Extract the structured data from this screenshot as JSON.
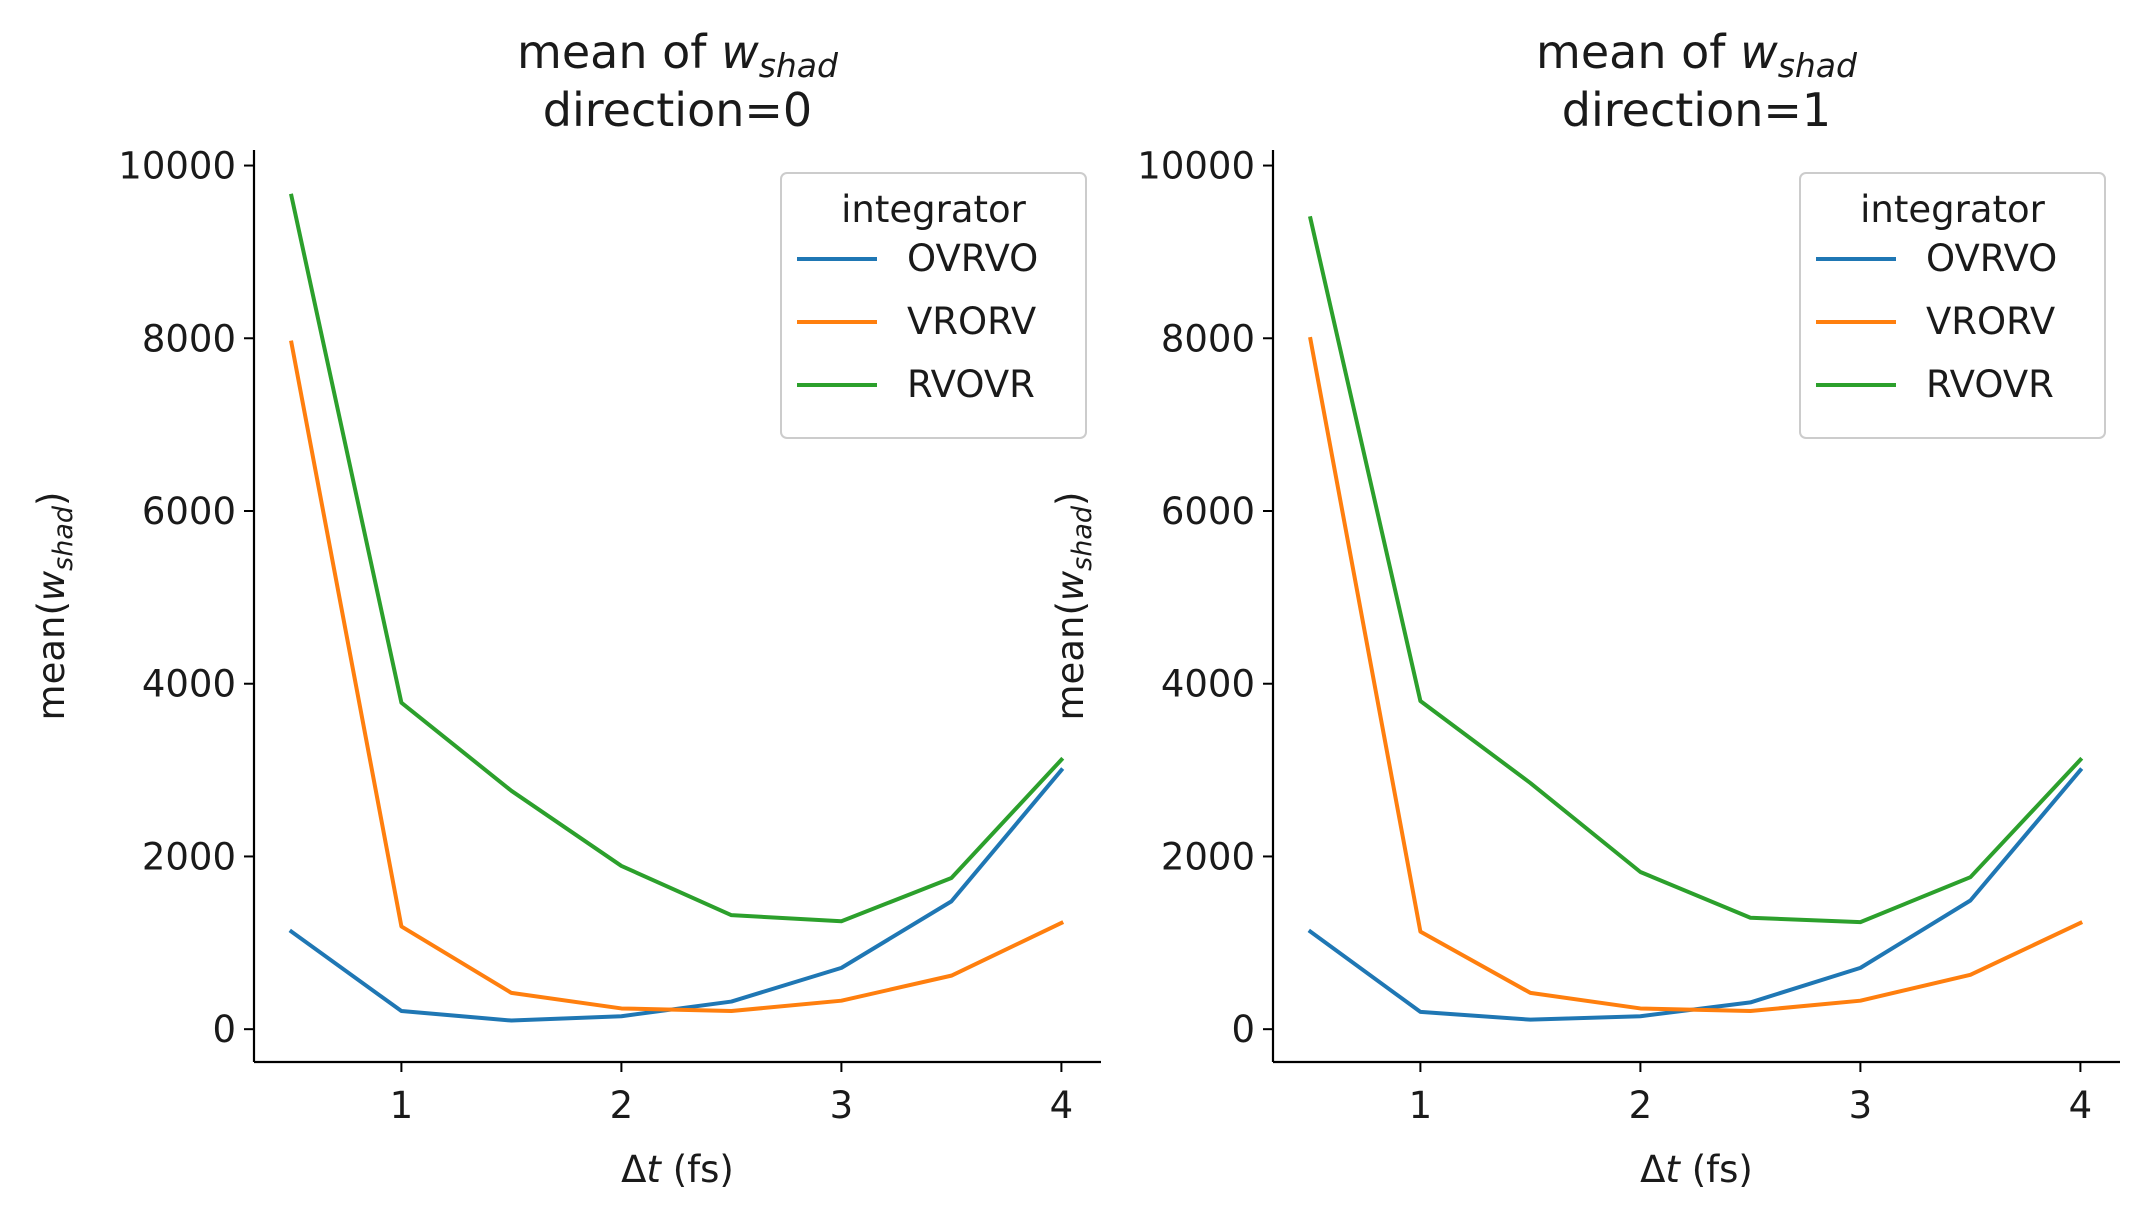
{
  "chart_data": [
    {
      "type": "line",
      "title_prefix": "mean of ",
      "title_var": "w",
      "title_sub": "shad",
      "title_line2": "direction=0",
      "xlabel_sym": "Δ",
      "xlabel_var": "t",
      "xlabel_rest": " (fs)",
      "ylabel_prefix": "mean(",
      "ylabel_var": "w",
      "ylabel_sub": "shad",
      "ylabel_suffix": ")",
      "xlim": [
        0.33,
        4.18
      ],
      "ylim": [
        -380,
        10180
      ],
      "xticks": [
        1,
        2,
        3,
        4
      ],
      "yticks": [
        0,
        2000,
        4000,
        6000,
        8000,
        10000
      ],
      "legend_title": "integrator",
      "legend_position": "top-right",
      "grid": false,
      "x": [
        0.5,
        1.0,
        1.5,
        2.0,
        2.5,
        3.0,
        3.5,
        4.0
      ],
      "series": [
        {
          "name": "OVRVO",
          "color": "#1f77b4",
          "values": [
            1130,
            210,
            100,
            150,
            320,
            710,
            1480,
            3000
          ]
        },
        {
          "name": "VRORV",
          "color": "#ff7f0e",
          "values": [
            7950,
            1190,
            420,
            240,
            210,
            330,
            620,
            1230
          ]
        },
        {
          "name": "RVOVR",
          "color": "#2ca02c",
          "values": [
            9650,
            3780,
            2760,
            1890,
            1320,
            1250,
            1750,
            3120
          ]
        }
      ]
    },
    {
      "type": "line",
      "title_prefix": "mean of ",
      "title_var": "w",
      "title_sub": "shad",
      "title_line2": "direction=1",
      "xlabel_sym": "Δ",
      "xlabel_var": "t",
      "xlabel_rest": " (fs)",
      "ylabel_prefix": "mean(",
      "ylabel_var": "w",
      "ylabel_sub": "shad",
      "ylabel_suffix": ")",
      "xlim": [
        0.33,
        4.18
      ],
      "ylim": [
        -380,
        10180
      ],
      "xticks": [
        1,
        2,
        3,
        4
      ],
      "yticks": [
        0,
        2000,
        4000,
        6000,
        8000,
        10000
      ],
      "legend_title": "integrator",
      "legend_position": "top-right",
      "grid": false,
      "x": [
        0.5,
        1.0,
        1.5,
        2.0,
        2.5,
        3.0,
        3.5,
        4.0
      ],
      "series": [
        {
          "name": "OVRVO",
          "color": "#1f77b4",
          "values": [
            1130,
            200,
            110,
            150,
            310,
            710,
            1490,
            3000
          ]
        },
        {
          "name": "VRORV",
          "color": "#ff7f0e",
          "values": [
            7990,
            1130,
            420,
            240,
            210,
            330,
            630,
            1230
          ]
        },
        {
          "name": "RVOVR",
          "color": "#2ca02c",
          "values": [
            9390,
            3800,
            2850,
            1820,
            1290,
            1240,
            1760,
            3120
          ]
        }
      ]
    }
  ]
}
